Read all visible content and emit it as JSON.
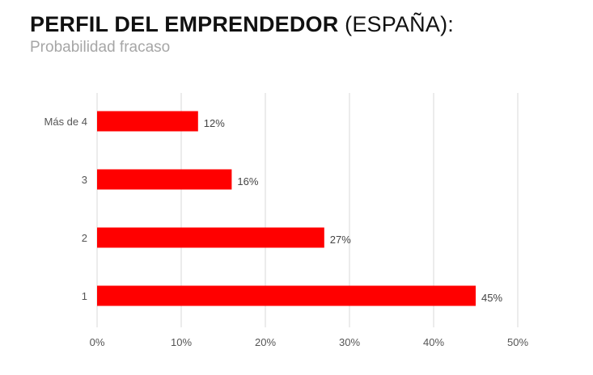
{
  "header": {
    "title_bold": "PERFIL DEL EMPRENDEDOR",
    "title_rest": " (ESPAÑA):",
    "subtitle": "Probabilidad fracaso"
  },
  "chart_data": {
    "type": "bar",
    "orientation": "horizontal",
    "title": "PERFIL DEL EMPRENDEDOR (ESPAÑA):",
    "subtitle": "Probabilidad fracaso",
    "categories": [
      "Más de 4",
      "3",
      "2",
      "1"
    ],
    "values": [
      12,
      16,
      27,
      45
    ],
    "value_labels": [
      "12%",
      "16%",
      "27%",
      "45%"
    ],
    "xlim": [
      0,
      50
    ],
    "x_ticks": [
      0,
      10,
      20,
      30,
      40,
      50
    ],
    "x_tick_labels": [
      "0%",
      "10%",
      "20%",
      "30%",
      "40%",
      "50%"
    ],
    "xlabel": "",
    "ylabel": "",
    "grid": "vertical",
    "legend": "none",
    "bar_color": "#ff0000",
    "grid_color": "#d9d9d9"
  }
}
